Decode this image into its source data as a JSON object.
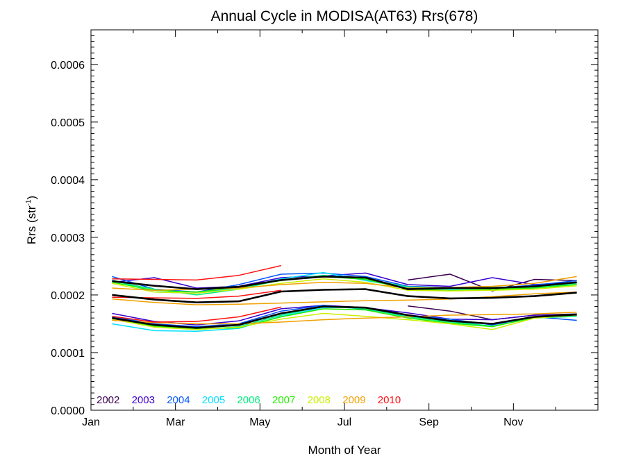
{
  "chart_data": {
    "type": "line",
    "title": "Annual Cycle in MODISA(AT63) Rrs(678)",
    "xlabel": "Month of Year",
    "ylabel": "Rrs (str",
    "ylabel_sup": "-1",
    "ylabel_close": ")",
    "xlim": [
      0.5,
      12.5
    ],
    "ylim": [
      0.0,
      0.00066
    ],
    "x_ticks": [
      {
        "value": 0.5,
        "label": "Jan"
      },
      {
        "value": 2.5,
        "label": "Mar"
      },
      {
        "value": 4.5,
        "label": "May"
      },
      {
        "value": 6.5,
        "label": "Jul"
      },
      {
        "value": 8.5,
        "label": "Sep"
      },
      {
        "value": 10.5,
        "label": "Nov"
      }
    ],
    "y_ticks": [
      {
        "value": 0.0,
        "label": "0.0000"
      },
      {
        "value": 0.0001,
        "label": "0.0001"
      },
      {
        "value": 0.0002,
        "label": "0.0002"
      },
      {
        "value": 0.0003,
        "label": "0.0003"
      },
      {
        "value": 0.0004,
        "label": "0.0004"
      },
      {
        "value": 0.0005,
        "label": "0.0005"
      },
      {
        "value": 0.0006,
        "label": "0.0006"
      }
    ],
    "x": [
      1,
      2,
      3,
      4,
      5,
      6,
      7,
      8,
      9,
      10,
      11,
      12
    ],
    "legend_position": "bottom-left",
    "series": [
      {
        "name": "2002",
        "color": "#3c0050",
        "lines": [
          [
            null,
            null,
            null,
            null,
            null,
            null,
            null,
            0.000226,
            0.000236,
            0.000207,
            0.000227,
            0.000225
          ],
          [
            null,
            null,
            null,
            null,
            null,
            null,
            null,
            0.000181,
            0.000172,
            0.000157,
            0.000165,
            0.000167
          ]
        ]
      },
      {
        "name": "2003",
        "color": "#3a00d0",
        "lines": [
          [
            0.000222,
            0.00023,
            0.000212,
            0.000215,
            0.00023,
            0.000233,
            0.000238,
            0.000218,
            0.000215,
            0.00023,
            0.000218,
            0.000222
          ],
          [
            0.000168,
            0.000154,
            0.000148,
            0.000155,
            0.000176,
            0.000182,
            0.000178,
            0.000169,
            0.000158,
            0.000157,
            0.000165,
            0.000165
          ]
        ]
      },
      {
        "name": "2004",
        "color": "#0055ff",
        "lines": [
          [
            0.000232,
            0.00021,
            0.000205,
            0.000218,
            0.000236,
            0.000238,
            0.000232,
            0.000215,
            0.000213,
            0.000212,
            0.000217,
            0.000225
          ],
          [
            0.000162,
            0.00015,
            0.000145,
            0.00015,
            0.000172,
            0.000182,
            0.000175,
            0.000165,
            0.000158,
            0.000148,
            0.000162,
            0.000156
          ]
        ]
      },
      {
        "name": "2005",
        "color": "#00e0ff",
        "lines": [
          [
            0.000226,
            0.000205,
            0.000203,
            0.000212,
            0.000228,
            0.000239,
            0.000225,
            0.000213,
            0.00021,
            0.000213,
            0.000215,
            0.000222
          ],
          [
            0.00015,
            0.000138,
            0.000137,
            0.000142,
            0.000163,
            0.000178,
            0.000178,
            0.000163,
            0.000156,
            0.000145,
            0.000162,
            0.000165
          ]
        ]
      },
      {
        "name": "2006",
        "color": "#00ee80",
        "lines": [
          [
            0.000224,
            0.00021,
            0.0002,
            0.00021,
            0.000226,
            0.000234,
            0.000228,
            0.000214,
            0.000212,
            0.000213,
            0.000213,
            0.00022
          ],
          [
            0.000158,
            0.000145,
            0.00014,
            0.000145,
            0.000165,
            0.00018,
            0.000176,
            0.000162,
            0.000153,
            0.000146,
            0.00016,
            0.000163
          ]
        ]
      },
      {
        "name": "2007",
        "color": "#22ee00",
        "lines": [
          [
            0.000222,
            0.000208,
            0.000205,
            0.000213,
            0.000225,
            0.000232,
            0.000227,
            0.00021,
            0.000208,
            0.00021,
            0.000212,
            0.000218
          ],
          [
            0.00016,
            0.000146,
            0.000141,
            0.000143,
            0.000162,
            0.000176,
            0.000174,
            0.00016,
            0.000151,
            0.000145,
            0.000161,
            0.000166
          ]
        ]
      },
      {
        "name": "2008",
        "color": "#ccee00",
        "lines": [
          [
            0.00022,
            0.000205,
            0.000203,
            0.00021,
            0.00022,
            0.000228,
            0.000222,
            0.000208,
            0.000207,
            0.000208,
            0.00021,
            0.000216
          ],
          [
            0.000158,
            0.000144,
            0.00014,
            0.000144,
            0.000158,
            0.000168,
            0.000163,
            0.000157,
            0.00015,
            0.00014,
            0.00016,
            0.000165
          ]
        ]
      },
      {
        "name": "2009",
        "color": "#f0a000",
        "lines": [
          [
            0.000212,
            0.000208,
            0.00021,
            0.000212,
            0.000218,
            0.000222,
            0.00022,
            0.000212,
            0.000213,
            0.000215,
            0.00022,
            0.000232
          ],
          [
            0.000193,
            0.000187,
            0.000183,
            0.000184,
            0.000186,
            0.000188,
            0.00019,
            0.000191,
            0.000193,
            0.000197,
            0.000202,
            0.000205
          ],
          [
            0.000156,
            0.000152,
            0.00015,
            0.00015,
            0.000153,
            0.000157,
            0.00016,
            0.000162,
            0.000165,
            0.000166,
            0.000167,
            0.00017
          ]
        ]
      },
      {
        "name": "2010",
        "color": "#ff1010",
        "lines": [
          [
            0.000228,
            0.000227,
            0.000226,
            0.000234,
            0.000251,
            null,
            null,
            null,
            null,
            null,
            null,
            null
          ],
          [
            0.000196,
            0.000195,
            0.000194,
            0.000198,
            0.000208,
            null,
            null,
            null,
            null,
            null,
            null,
            null
          ],
          [
            0.000163,
            0.000153,
            0.000154,
            0.000162,
            0.000179,
            null,
            null,
            null,
            null,
            null,
            null,
            null
          ]
        ]
      },
      {
        "name": "",
        "color": "#000000",
        "lines": [
          [
            0.000224,
            0.000216,
            0.00021,
            0.000214,
            0.000226,
            0.000232,
            0.00023,
            0.00021,
            0.000212,
            0.000212,
            0.000215,
            0.000222
          ],
          [
            0.0002,
            0.000192,
            0.000187,
            0.000189,
            0.000206,
            0.000209,
            0.00021,
            0.000198,
            0.000194,
            0.000195,
            0.000198,
            0.000204
          ],
          [
            0.00016,
            0.000148,
            0.000143,
            0.000148,
            0.000168,
            0.00018,
            0.000178,
            0.000165,
            0.000155,
            0.00015,
            0.000162,
            0.000166
          ]
        ]
      }
    ]
  }
}
